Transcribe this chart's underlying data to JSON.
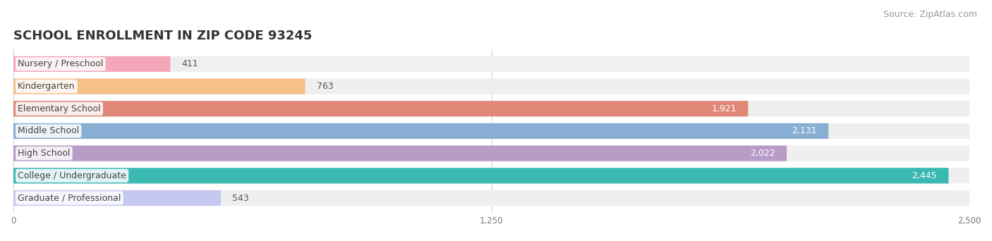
{
  "title": "SCHOOL ENROLLMENT IN ZIP CODE 93245",
  "source": "Source: ZipAtlas.com",
  "categories": [
    "Nursery / Preschool",
    "Kindergarten",
    "Elementary School",
    "Middle School",
    "High School",
    "College / Undergraduate",
    "Graduate / Professional"
  ],
  "values": [
    411,
    763,
    1921,
    2131,
    2022,
    2445,
    543
  ],
  "bar_colors": [
    "#f4a7b9",
    "#f5c08a",
    "#e08878",
    "#89aed4",
    "#b89cc8",
    "#3ab8b2",
    "#c5c8f0"
  ],
  "bar_bg_color": "#efefef",
  "xlim": [
    0,
    2500
  ],
  "xticks": [
    0,
    1250,
    2500
  ],
  "title_fontsize": 13,
  "source_fontsize": 9,
  "label_fontsize": 9,
  "value_fontsize": 9,
  "bar_height": 0.7,
  "figsize": [
    14.06,
    3.42
  ],
  "dpi": 100
}
